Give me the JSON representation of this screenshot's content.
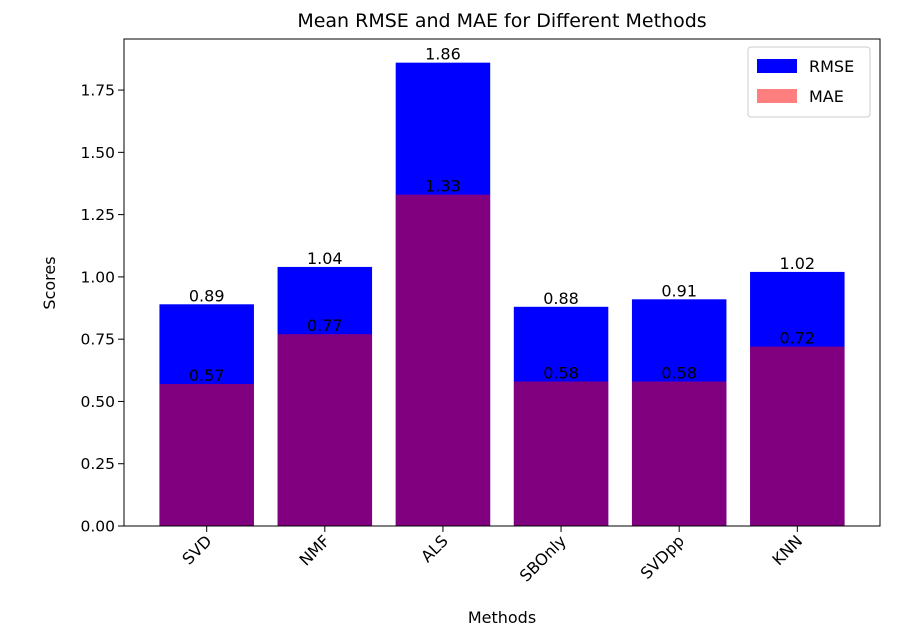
{
  "chart_data": {
    "type": "bar",
    "title": "Mean RMSE and MAE for Different Methods",
    "xlabel": "Methods",
    "ylabel": "Scores",
    "categories": [
      "SVD",
      "NMF",
      "ALS",
      "SBOnly",
      "SVDpp",
      "KNN"
    ],
    "series": [
      {
        "name": "RMSE",
        "color": "#0000ff",
        "values": [
          0.89,
          1.04,
          1.86,
          0.88,
          0.91,
          1.02
        ],
        "labels": [
          "0.89",
          "1.04",
          "1.86",
          "0.88",
          "0.91",
          "1.02"
        ]
      },
      {
        "name": "MAE",
        "color": "#ff0000",
        "opacity": 0.5,
        "values": [
          0.57,
          0.77,
          1.33,
          0.58,
          0.58,
          0.72
        ],
        "labels": [
          "0.57",
          "0.77",
          "1.33",
          "0.58",
          "0.58",
          "0.72"
        ]
      }
    ],
    "ylim": [
      0,
      1.955
    ],
    "yticks": [
      "0.00",
      "0.25",
      "0.50",
      "0.75",
      "1.00",
      "1.25",
      "1.50",
      "1.75"
    ],
    "grid": false,
    "legend_position": "top-right"
  }
}
